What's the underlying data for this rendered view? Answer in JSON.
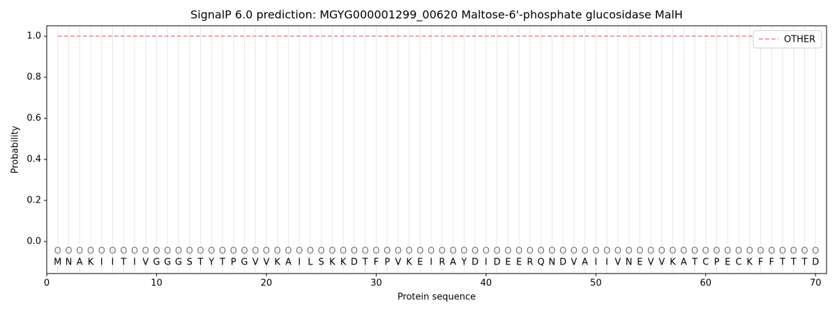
{
  "chart_data": {
    "type": "line",
    "title": "SignalP 6.0 prediction: MGYG000001299_00620 Maltose-6'-phosphate glucosidase MalH",
    "x_label": "Protein sequence",
    "y_label": "Probability",
    "x": [
      1,
      2,
      3,
      4,
      5,
      6,
      7,
      8,
      9,
      10,
      11,
      12,
      13,
      14,
      15,
      16,
      17,
      18,
      19,
      20,
      21,
      22,
      23,
      24,
      25,
      26,
      27,
      28,
      29,
      30,
      31,
      32,
      33,
      34,
      35,
      36,
      37,
      38,
      39,
      40,
      41,
      42,
      43,
      44,
      45,
      46,
      47,
      48,
      49,
      50,
      51,
      52,
      53,
      54,
      55,
      56,
      57,
      58,
      59,
      60,
      61,
      62,
      63,
      64,
      65,
      66,
      67,
      68,
      69,
      70
    ],
    "sequence": [
      "M",
      "N",
      "A",
      "K",
      "I",
      "I",
      "T",
      "I",
      "V",
      "G",
      "G",
      "G",
      "S",
      "T",
      "Y",
      "T",
      "P",
      "G",
      "V",
      "V",
      "K",
      "A",
      "I",
      "L",
      "S",
      "K",
      "K",
      "D",
      "T",
      "F",
      "P",
      "V",
      "K",
      "E",
      "I",
      "R",
      "A",
      "Y",
      "D",
      "I",
      "D",
      "E",
      "E",
      "R",
      "Q",
      "N",
      "D",
      "V",
      "A",
      "I",
      "I",
      "V",
      "N",
      "E",
      "V",
      "V",
      "K",
      "A",
      "T",
      "C",
      "P",
      "E",
      "C",
      "K",
      "F",
      "F",
      "T",
      "T",
      "T",
      "D"
    ],
    "predicted_labels": [
      "O",
      "O",
      "O",
      "O",
      "O",
      "O",
      "O",
      "O",
      "O",
      "O",
      "O",
      "O",
      "O",
      "O",
      "O",
      "O",
      "O",
      "O",
      "O",
      "O",
      "O",
      "O",
      "O",
      "O",
      "O",
      "O",
      "O",
      "O",
      "O",
      "O",
      "O",
      "O",
      "O",
      "O",
      "O",
      "O",
      "O",
      "O",
      "O",
      "O",
      "O",
      "O",
      "O",
      "O",
      "O",
      "O",
      "O",
      "O",
      "O",
      "O",
      "O",
      "O",
      "O",
      "O",
      "O",
      "O",
      "O",
      "O",
      "O",
      "O",
      "O",
      "O",
      "O",
      "O",
      "O",
      "O",
      "O",
      "O",
      "O",
      "O"
    ],
    "series": [
      {
        "name": "OTHER",
        "color": "#f08080",
        "dash": true,
        "values": [
          1,
          1,
          1,
          1,
          1,
          1,
          1,
          1,
          1,
          1,
          1,
          1,
          1,
          1,
          1,
          1,
          1,
          1,
          1,
          1,
          1,
          1,
          1,
          1,
          1,
          1,
          1,
          1,
          1,
          1,
          1,
          1,
          1,
          1,
          1,
          1,
          1,
          1,
          1,
          1,
          1,
          1,
          1,
          1,
          1,
          1,
          1,
          1,
          1,
          1,
          1,
          1,
          1,
          1,
          1,
          1,
          1,
          1,
          1,
          1,
          1,
          1,
          1,
          1,
          1,
          1,
          1,
          1,
          1,
          1
        ]
      }
    ],
    "xlim": [
      0,
      71
    ],
    "ylim": [
      -0.156,
      1.051
    ],
    "xticks": [
      0,
      10,
      20,
      30,
      40,
      50,
      60,
      70
    ],
    "yticks": [
      {
        "value": 0,
        "label": "0.0"
      },
      {
        "value": 0.2,
        "label": "0.2"
      },
      {
        "value": 0.4,
        "label": "0.4"
      },
      {
        "value": 0.6,
        "label": "0.6"
      },
      {
        "value": 0.8,
        "label": "0.8"
      },
      {
        "value": 1,
        "label": "1.0"
      }
    ],
    "legend": "upper right"
  }
}
